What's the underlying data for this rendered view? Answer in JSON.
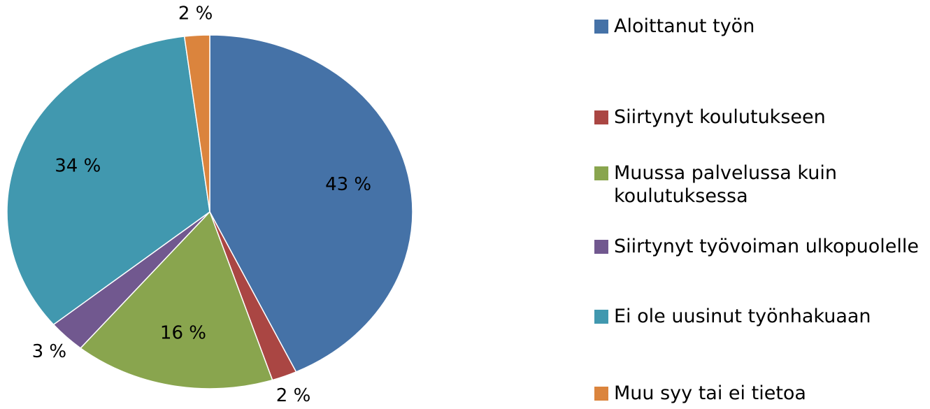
{
  "chart_data": {
    "type": "pie",
    "categories": [
      "Aloittanut työn",
      "Siirtynyt koulutukseen",
      "Muussa palvelussa kuin koulutuksessa",
      "Siirtynyt työvoiman ulkopuolelle",
      "Ei ole uusinut työnhakuaan",
      "Muu syy tai ei tietoa"
    ],
    "values": [
      43,
      2,
      16,
      3,
      34,
      2
    ],
    "value_labels": [
      "43 %",
      "2 %",
      "16 %",
      "3 %",
      "34 %",
      "2 %"
    ],
    "colors": [
      "#4572a7",
      "#aa4643",
      "#89a54e",
      "#71588f",
      "#4198af",
      "#db843d"
    ],
    "legend": "right"
  }
}
